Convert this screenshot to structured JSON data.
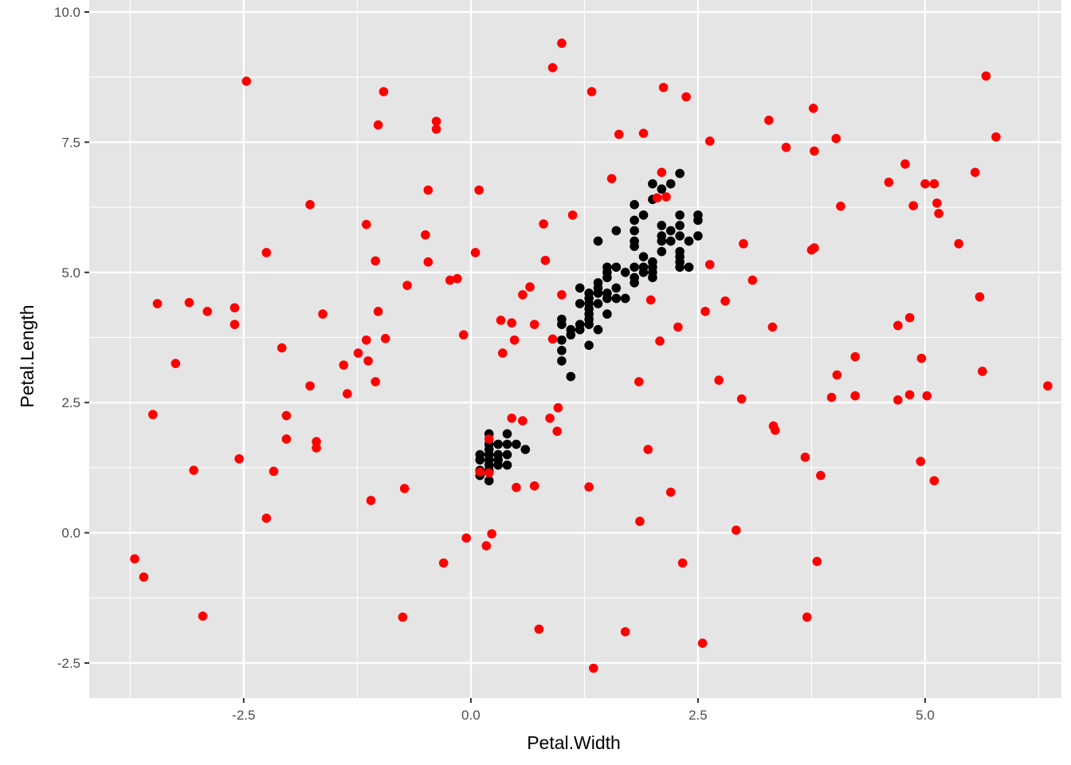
{
  "chart_data": {
    "type": "scatter",
    "title": "",
    "xlabel": "Petal.Width",
    "ylabel": "Petal.Length",
    "xlim": [
      -4.2,
      6.5
    ],
    "ylim": [
      -3.2,
      10.0
    ],
    "x_ticks": [
      -2.5,
      0.0,
      2.5,
      5.0
    ],
    "x_tick_labels": [
      "-2.5",
      "0.0",
      "2.5",
      "5.0"
    ],
    "y_ticks": [
      -2.5,
      0.0,
      2.5,
      5.0,
      7.5,
      10.0
    ],
    "y_tick_labels": [
      "-2.5",
      "0.0",
      "2.5",
      "5.0",
      "7.5",
      "10.0"
    ],
    "grid": true,
    "legend": "none",
    "colors": {
      "panel": "#e5e5e5",
      "grid": "#ffffff",
      "tick": "#333333"
    },
    "series": [
      {
        "color": "#000000",
        "points": [
          [
            0.1,
            1.1
          ],
          [
            0.1,
            1.2
          ],
          [
            0.1,
            1.4
          ],
          [
            0.1,
            1.5
          ],
          [
            0.2,
            1.0
          ],
          [
            0.2,
            1.2
          ],
          [
            0.2,
            1.3
          ],
          [
            0.2,
            1.4
          ],
          [
            0.2,
            1.5
          ],
          [
            0.2,
            1.6
          ],
          [
            0.2,
            1.7
          ],
          [
            0.2,
            1.9
          ],
          [
            0.3,
            1.3
          ],
          [
            0.3,
            1.4
          ],
          [
            0.3,
            1.5
          ],
          [
            0.3,
            1.7
          ],
          [
            0.4,
            1.3
          ],
          [
            0.4,
            1.5
          ],
          [
            0.4,
            1.7
          ],
          [
            0.4,
            1.9
          ],
          [
            0.5,
            1.7
          ],
          [
            0.6,
            1.6
          ],
          [
            1.0,
            3.3
          ],
          [
            1.0,
            3.5
          ],
          [
            1.0,
            3.7
          ],
          [
            1.0,
            4.0
          ],
          [
            1.0,
            4.1
          ],
          [
            1.1,
            3.0
          ],
          [
            1.1,
            3.8
          ],
          [
            1.1,
            3.9
          ],
          [
            1.2,
            3.9
          ],
          [
            1.2,
            4.0
          ],
          [
            1.2,
            4.4
          ],
          [
            1.2,
            4.7
          ],
          [
            1.3,
            3.6
          ],
          [
            1.3,
            4.0
          ],
          [
            1.3,
            4.1
          ],
          [
            1.3,
            4.2
          ],
          [
            1.3,
            4.3
          ],
          [
            1.3,
            4.4
          ],
          [
            1.3,
            4.5
          ],
          [
            1.3,
            4.6
          ],
          [
            1.4,
            3.9
          ],
          [
            1.4,
            4.4
          ],
          [
            1.4,
            4.6
          ],
          [
            1.4,
            4.7
          ],
          [
            1.4,
            4.8
          ],
          [
            1.4,
            5.6
          ],
          [
            1.5,
            4.2
          ],
          [
            1.5,
            4.5
          ],
          [
            1.5,
            4.6
          ],
          [
            1.5,
            4.9
          ],
          [
            1.5,
            5.0
          ],
          [
            1.5,
            5.1
          ],
          [
            1.6,
            4.5
          ],
          [
            1.6,
            4.7
          ],
          [
            1.6,
            5.1
          ],
          [
            1.6,
            5.8
          ],
          [
            1.7,
            4.5
          ],
          [
            1.7,
            5.0
          ],
          [
            1.8,
            4.8
          ],
          [
            1.8,
            4.9
          ],
          [
            1.8,
            5.1
          ],
          [
            1.8,
            5.5
          ],
          [
            1.8,
            5.6
          ],
          [
            1.8,
            5.8
          ],
          [
            1.8,
            6.0
          ],
          [
            1.8,
            6.3
          ],
          [
            1.9,
            5.0
          ],
          [
            1.9,
            5.1
          ],
          [
            1.9,
            5.3
          ],
          [
            1.9,
            6.1
          ],
          [
            2.0,
            4.9
          ],
          [
            2.0,
            5.0
          ],
          [
            2.0,
            5.1
          ],
          [
            2.0,
            5.2
          ],
          [
            2.0,
            6.4
          ],
          [
            2.0,
            6.7
          ],
          [
            2.1,
            5.4
          ],
          [
            2.1,
            5.6
          ],
          [
            2.1,
            5.7
          ],
          [
            2.1,
            5.9
          ],
          [
            2.1,
            6.6
          ],
          [
            2.2,
            5.6
          ],
          [
            2.2,
            5.8
          ],
          [
            2.2,
            6.7
          ],
          [
            2.3,
            5.1
          ],
          [
            2.3,
            5.2
          ],
          [
            2.3,
            5.3
          ],
          [
            2.3,
            5.4
          ],
          [
            2.3,
            5.7
          ],
          [
            2.3,
            5.9
          ],
          [
            2.3,
            6.1
          ],
          [
            2.3,
            6.9
          ],
          [
            2.4,
            5.1
          ],
          [
            2.4,
            5.6
          ],
          [
            2.5,
            5.7
          ],
          [
            2.5,
            6.0
          ],
          [
            2.5,
            6.1
          ]
        ]
      },
      {
        "color": "#ff0000",
        "points": [
          [
            -3.7,
            -0.5
          ],
          [
            -3.6,
            -0.85
          ],
          [
            -3.5,
            2.27
          ],
          [
            -3.45,
            4.4
          ],
          [
            -3.25,
            3.25
          ],
          [
            -3.1,
            4.42
          ],
          [
            -3.05,
            1.2
          ],
          [
            -2.95,
            -1.6
          ],
          [
            -2.9,
            4.25
          ],
          [
            -2.55,
            1.42
          ],
          [
            -2.6,
            4.0
          ],
          [
            -2.6,
            4.32
          ],
          [
            -2.47,
            8.67
          ],
          [
            -2.25,
            0.28
          ],
          [
            -2.25,
            5.38
          ],
          [
            -2.17,
            1.18
          ],
          [
            -2.08,
            3.55
          ],
          [
            -2.03,
            1.8
          ],
          [
            -2.03,
            2.25
          ],
          [
            -1.77,
            2.82
          ],
          [
            -1.77,
            6.3
          ],
          [
            -1.7,
            1.63
          ],
          [
            -1.7,
            1.75
          ],
          [
            -1.63,
            4.2
          ],
          [
            -1.4,
            3.22
          ],
          [
            -1.36,
            2.67
          ],
          [
            -1.24,
            3.45
          ],
          [
            -1.15,
            3.7
          ],
          [
            -1.15,
            5.92
          ],
          [
            -1.13,
            3.3
          ],
          [
            -1.1,
            0.62
          ],
          [
            -1.05,
            5.22
          ],
          [
            -1.05,
            2.9
          ],
          [
            -1.02,
            4.25
          ],
          [
            -1.02,
            7.83
          ],
          [
            -0.96,
            8.47
          ],
          [
            -0.94,
            3.73
          ],
          [
            -0.75,
            -1.62
          ],
          [
            -0.73,
            0.85
          ],
          [
            -0.7,
            4.75
          ],
          [
            -0.5,
            5.72
          ],
          [
            -0.47,
            5.2
          ],
          [
            -0.47,
            6.58
          ],
          [
            -0.38,
            7.9
          ],
          [
            -0.38,
            7.75
          ],
          [
            -0.3,
            -0.58
          ],
          [
            -0.23,
            4.85
          ],
          [
            -0.15,
            4.88
          ],
          [
            -0.08,
            3.8
          ],
          [
            -0.05,
            -0.1
          ],
          [
            0.05,
            5.38
          ],
          [
            0.09,
            6.58
          ],
          [
            0.1,
            1.17
          ],
          [
            0.17,
            -0.25
          ],
          [
            0.2,
            1.15
          ],
          [
            0.2,
            1.8
          ],
          [
            0.23,
            -0.02
          ],
          [
            0.33,
            4.08
          ],
          [
            0.35,
            3.45
          ],
          [
            0.45,
            2.2
          ],
          [
            0.45,
            4.03
          ],
          [
            0.48,
            3.7
          ],
          [
            0.5,
            0.87
          ],
          [
            0.57,
            2.15
          ],
          [
            0.57,
            4.57
          ],
          [
            0.65,
            4.72
          ],
          [
            0.7,
            0.9
          ],
          [
            0.7,
            4.0
          ],
          [
            0.75,
            -1.85
          ],
          [
            0.8,
            5.93
          ],
          [
            0.82,
            5.23
          ],
          [
            0.87,
            2.2
          ],
          [
            0.9,
            8.93
          ],
          [
            0.9,
            3.72
          ],
          [
            0.95,
            1.95
          ],
          [
            0.96,
            2.4
          ],
          [
            1.0,
            9.4
          ],
          [
            1.0,
            4.57
          ],
          [
            1.12,
            6.1
          ],
          [
            1.3,
            0.88
          ],
          [
            1.33,
            8.47
          ],
          [
            1.35,
            -2.6
          ],
          [
            1.55,
            6.8
          ],
          [
            1.63,
            7.65
          ],
          [
            1.7,
            -1.9
          ],
          [
            1.85,
            2.9
          ],
          [
            1.86,
            0.22
          ],
          [
            1.9,
            7.67
          ],
          [
            1.95,
            1.6
          ],
          [
            1.98,
            4.47
          ],
          [
            2.05,
            6.43
          ],
          [
            2.08,
            3.68
          ],
          [
            2.1,
            6.92
          ],
          [
            2.12,
            8.55
          ],
          [
            2.15,
            6.45
          ],
          [
            2.2,
            0.78
          ],
          [
            2.28,
            3.95
          ],
          [
            2.33,
            -0.58
          ],
          [
            2.37,
            8.37
          ],
          [
            2.55,
            -2.12
          ],
          [
            2.58,
            4.25
          ],
          [
            2.63,
            5.15
          ],
          [
            2.63,
            7.52
          ],
          [
            2.73,
            2.93
          ],
          [
            2.8,
            4.45
          ],
          [
            2.92,
            0.05
          ],
          [
            2.98,
            2.57
          ],
          [
            3.0,
            5.55
          ],
          [
            3.1,
            4.85
          ],
          [
            3.28,
            7.92
          ],
          [
            3.32,
            3.95
          ],
          [
            3.33,
            2.05
          ],
          [
            3.35,
            1.97
          ],
          [
            3.47,
            7.4
          ],
          [
            3.68,
            1.45
          ],
          [
            3.7,
            -1.62
          ],
          [
            3.75,
            5.43
          ],
          [
            3.77,
            8.15
          ],
          [
            3.78,
            5.47
          ],
          [
            3.78,
            7.33
          ],
          [
            3.81,
            -0.55
          ],
          [
            3.85,
            1.1
          ],
          [
            3.97,
            2.6
          ],
          [
            4.02,
            7.57
          ],
          [
            4.03,
            3.03
          ],
          [
            4.07,
            6.27
          ],
          [
            4.23,
            2.63
          ],
          [
            4.23,
            3.38
          ],
          [
            4.6,
            6.73
          ],
          [
            4.7,
            2.55
          ],
          [
            4.7,
            3.98
          ],
          [
            4.78,
            7.08
          ],
          [
            4.83,
            2.65
          ],
          [
            4.83,
            4.13
          ],
          [
            4.87,
            6.28
          ],
          [
            4.95,
            1.37
          ],
          [
            4.96,
            3.35
          ],
          [
            5.0,
            6.7
          ],
          [
            5.02,
            2.63
          ],
          [
            5.1,
            6.7
          ],
          [
            5.1,
            1.0
          ],
          [
            5.13,
            6.33
          ],
          [
            5.15,
            6.13
          ],
          [
            5.37,
            5.55
          ],
          [
            5.55,
            6.92
          ],
          [
            5.6,
            4.53
          ],
          [
            5.63,
            3.1
          ],
          [
            5.67,
            8.77
          ],
          [
            5.78,
            7.6
          ],
          [
            6.35,
            2.82
          ]
        ]
      }
    ]
  }
}
